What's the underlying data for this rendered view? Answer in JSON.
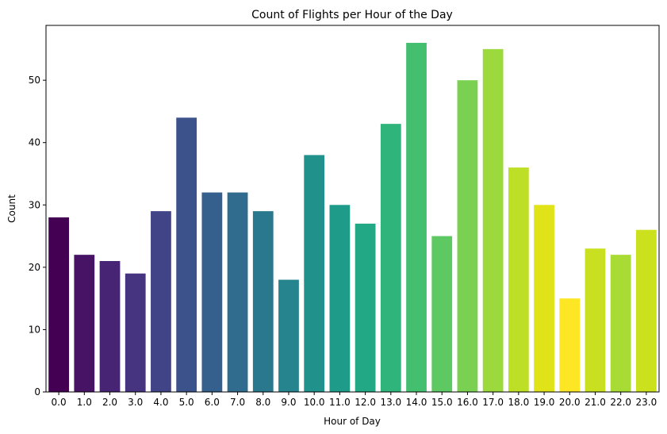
{
  "chart_data": {
    "type": "bar",
    "title": "Count of Flights per Hour of the Day",
    "xlabel": "Hour of Day",
    "ylabel": "Count",
    "categories": [
      "0.0",
      "1.0",
      "2.0",
      "3.0",
      "4.0",
      "5.0",
      "6.0",
      "7.0",
      "8.0",
      "9.0",
      "10.0",
      "11.0",
      "12.0",
      "13.0",
      "14.0",
      "15.0",
      "16.0",
      "17.0",
      "18.0",
      "19.0",
      "20.0",
      "21.0",
      "22.0",
      "23.0"
    ],
    "values": [
      28,
      22,
      21,
      19,
      29,
      44,
      32,
      32,
      29,
      18,
      38,
      30,
      27,
      43,
      56,
      25,
      50,
      55,
      36,
      30,
      15,
      23,
      22,
      26
    ],
    "ylim": [
      0,
      58.8
    ],
    "yticks": [
      0,
      10,
      20,
      30,
      40,
      50
    ],
    "grid": false,
    "colors": [
      "#440154",
      "#471365",
      "#482475",
      "#463480",
      "#414487",
      "#3b528b",
      "#355f8d",
      "#2f6c8e",
      "#2a788e",
      "#25848e",
      "#21918c",
      "#1e9c89",
      "#22a884",
      "#2fb47c",
      "#44bf70",
      "#5ec962",
      "#7ad151",
      "#9bd93c",
      "#bddf26",
      "#dfe318",
      "#fde725",
      "#c8e020",
      "#a8db34",
      "#cbe11e"
    ]
  }
}
